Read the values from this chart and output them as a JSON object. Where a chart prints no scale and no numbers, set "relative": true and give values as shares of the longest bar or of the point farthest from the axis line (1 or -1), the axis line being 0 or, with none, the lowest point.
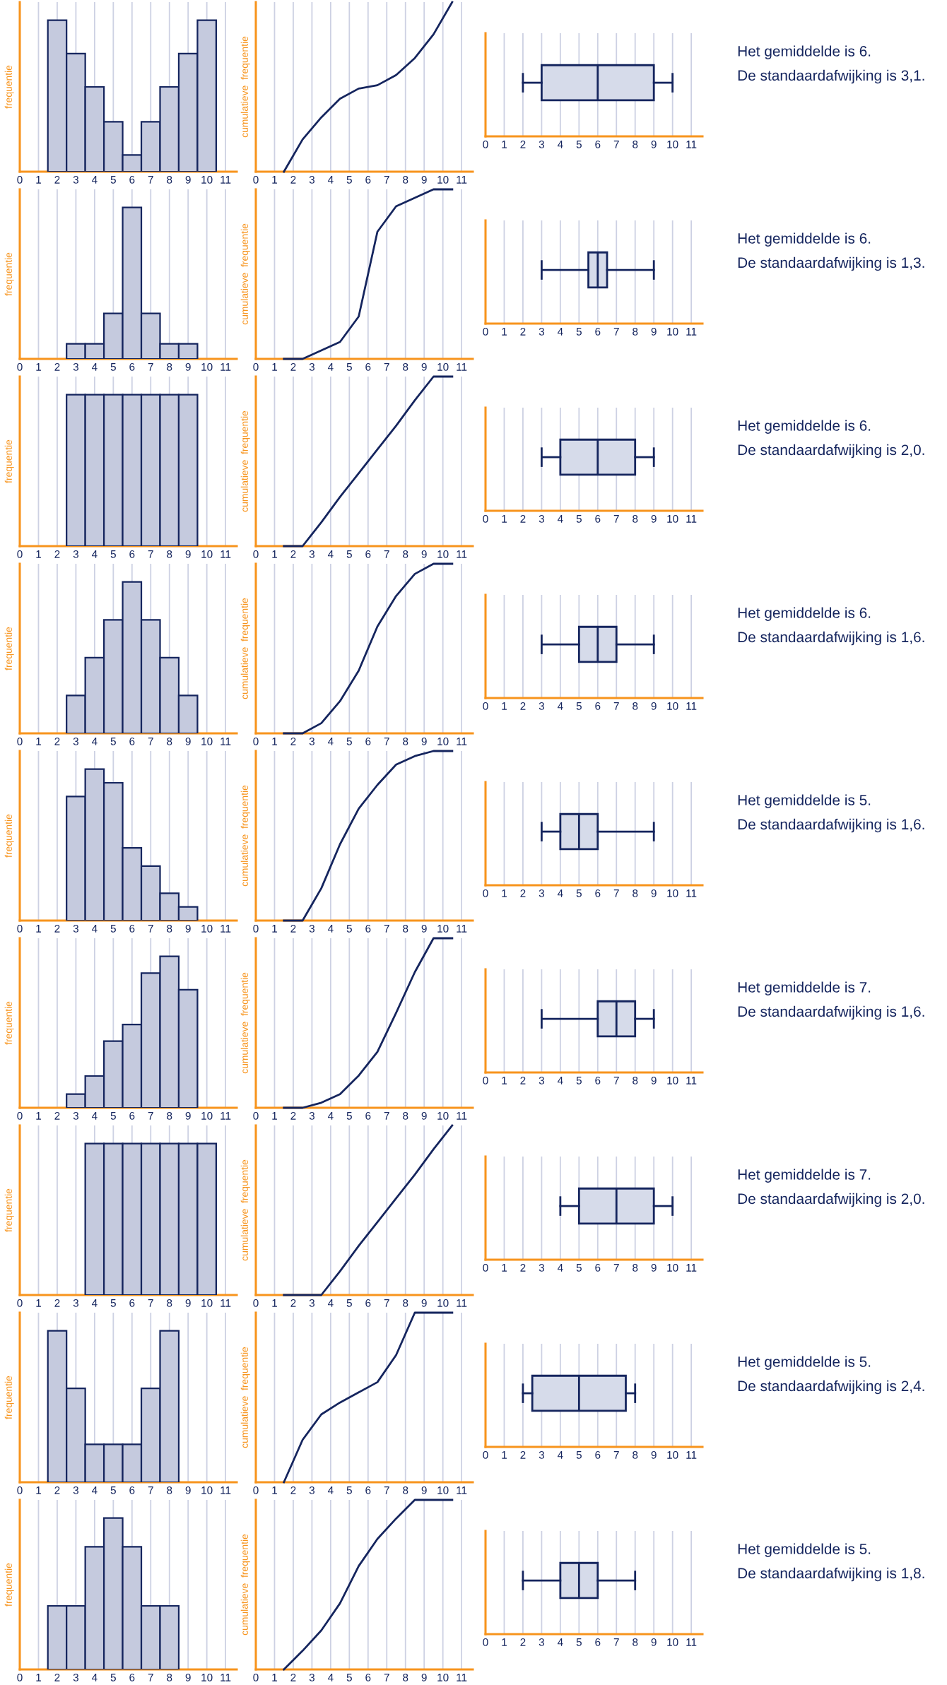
{
  "chart_data": [
    {
      "type": "bar",
      "relative": true,
      "ylabel": "frequentie",
      "x": [
        2,
        3,
        4,
        5,
        6,
        7,
        8,
        9,
        10
      ],
      "values": [
        1,
        0.78,
        0.56,
        0.33,
        0.11,
        0.33,
        0.56,
        0.78,
        1
      ],
      "color": "#c5cade",
      "xlim": [
        0,
        11.6
      ],
      "xticks": [
        0,
        1,
        2,
        3,
        4,
        5,
        6,
        7,
        8,
        9,
        10,
        11
      ],
      "grid": "x"
    },
    {
      "type": "line",
      "relative": true,
      "ylabel": "cumulatieve  frequentie",
      "x": [
        1.5,
        2.5,
        3.5,
        4.5,
        5.5,
        6.5,
        7.5,
        8.5,
        9.5,
        10.5
      ],
      "values": [
        0,
        0.19,
        0.32,
        0.43,
        0.49,
        0.51,
        0.57,
        0.67,
        0.81,
        1
      ],
      "color": "#15255e",
      "xlim": [
        0,
        11.6
      ],
      "xticks": [
        0,
        1,
        2,
        3,
        4,
        5,
        6,
        7,
        8,
        9,
        10,
        11
      ],
      "grid": "x"
    },
    {
      "type": "box",
      "orientation": "horizontal",
      "categories": [
        null
      ],
      "boxes": [
        {
          "low": 2,
          "q1": 3,
          "median": 6,
          "q3": 9,
          "high": 10
        }
      ],
      "color": "#d6dbea",
      "xlim": [
        0,
        11.6
      ],
      "xticks": [
        0,
        1,
        2,
        3,
        4,
        5,
        6,
        7,
        8,
        9,
        10,
        11
      ],
      "grid": "x",
      "annotations": [
        "Het gemiddelde is 6.",
        "De standaardafwijking is 3,1."
      ]
    },
    {
      "type": "bar",
      "relative": true,
      "ylabel": "frequentie",
      "x": [
        3,
        4,
        5,
        6,
        7,
        8,
        9
      ],
      "values": [
        0.1,
        0.1,
        0.3,
        1,
        0.3,
        0.1,
        0.1
      ],
      "color": "#c5cade",
      "xlim": [
        0,
        11.6
      ],
      "xticks": [
        0,
        1,
        2,
        3,
        4,
        5,
        6,
        7,
        8,
        9,
        10,
        11
      ],
      "grid": "x"
    },
    {
      "type": "line",
      "relative": true,
      "ylabel": "cumulatieve  frequentie",
      "x": [
        1.5,
        2.5,
        3.5,
        4.5,
        5.5,
        6.5,
        7.5,
        8.5,
        9.5,
        10.5
      ],
      "values": [
        0,
        0,
        0.05,
        0.1,
        0.25,
        0.75,
        0.9,
        0.95,
        1,
        1
      ],
      "color": "#15255e",
      "xlim": [
        0,
        11.6
      ],
      "xticks": [
        0,
        1,
        2,
        3,
        4,
        5,
        6,
        7,
        8,
        9,
        10,
        11
      ],
      "grid": "x"
    },
    {
      "type": "box",
      "orientation": "horizontal",
      "categories": [
        null
      ],
      "boxes": [
        {
          "low": 3,
          "q1": 5.5,
          "median": 6,
          "q3": 6.5,
          "high": 9
        }
      ],
      "color": "#d6dbea",
      "xlim": [
        0,
        11.6
      ],
      "xticks": [
        0,
        1,
        2,
        3,
        4,
        5,
        6,
        7,
        8,
        9,
        10,
        11
      ],
      "grid": "x",
      "annotations": [
        "Het gemiddelde is 6.",
        "De standaardafwijking is 1,3."
      ]
    },
    {
      "type": "bar",
      "relative": true,
      "ylabel": "frequentie",
      "x": [
        3,
        4,
        5,
        6,
        7,
        8,
        9
      ],
      "values": [
        1,
        1,
        1,
        1,
        1,
        1,
        1
      ],
      "color": "#c5cade",
      "xlim": [
        0,
        11.6
      ],
      "xticks": [
        0,
        1,
        2,
        3,
        4,
        5,
        6,
        7,
        8,
        9,
        10,
        11
      ],
      "grid": "x"
    },
    {
      "type": "line",
      "relative": true,
      "ylabel": "cumulatieve  frequentie",
      "x": [
        1.5,
        2.5,
        3.5,
        4.5,
        5.5,
        6.5,
        7.5,
        8.5,
        9.5,
        10.5
      ],
      "values": [
        0,
        0,
        0.14,
        0.29,
        0.43,
        0.57,
        0.71,
        0.86,
        1,
        1
      ],
      "color": "#15255e",
      "xlim": [
        0,
        11.6
      ],
      "xticks": [
        0,
        1,
        2,
        3,
        4,
        5,
        6,
        7,
        8,
        9,
        10,
        11
      ],
      "grid": "x"
    },
    {
      "type": "box",
      "orientation": "horizontal",
      "categories": [
        null
      ],
      "boxes": [
        {
          "low": 3,
          "q1": 4,
          "median": 6,
          "q3": 8,
          "high": 9
        }
      ],
      "color": "#d6dbea",
      "xlim": [
        0,
        11.6
      ],
      "xticks": [
        0,
        1,
        2,
        3,
        4,
        5,
        6,
        7,
        8,
        9,
        10,
        11
      ],
      "grid": "x",
      "annotations": [
        "Het gemiddelde is 6.",
        "De standaardafwijking is 2,0."
      ]
    },
    {
      "type": "bar",
      "relative": true,
      "ylabel": "frequentie",
      "x": [
        3,
        4,
        5,
        6,
        7,
        8,
        9
      ],
      "values": [
        0.25,
        0.5,
        0.75,
        1,
        0.75,
        0.5,
        0.25
      ],
      "color": "#c5cade",
      "xlim": [
        0,
        11.6
      ],
      "xticks": [
        0,
        1,
        2,
        3,
        4,
        5,
        6,
        7,
        8,
        9,
        10,
        11
      ],
      "grid": "x"
    },
    {
      "type": "line",
      "relative": true,
      "ylabel": "cumulatieve  frequentie",
      "x": [
        1.5,
        2.5,
        3.5,
        4.5,
        5.5,
        6.5,
        7.5,
        8.5,
        9.5,
        10.5
      ],
      "values": [
        0,
        0,
        0.06,
        0.19,
        0.37,
        0.63,
        0.81,
        0.94,
        1,
        1
      ],
      "color": "#15255e",
      "xlim": [
        0,
        11.6
      ],
      "xticks": [
        0,
        1,
        2,
        3,
        4,
        5,
        6,
        7,
        8,
        9,
        10,
        11
      ],
      "grid": "x"
    },
    {
      "type": "box",
      "orientation": "horizontal",
      "categories": [
        null
      ],
      "boxes": [
        {
          "low": 3,
          "q1": 5,
          "median": 6,
          "q3": 7,
          "high": 9
        }
      ],
      "color": "#d6dbea",
      "xlim": [
        0,
        11.6
      ],
      "xticks": [
        0,
        1,
        2,
        3,
        4,
        5,
        6,
        7,
        8,
        9,
        10,
        11
      ],
      "grid": "x",
      "annotations": [
        "Het gemiddelde is 6.",
        "De standaardafwijking is 1,6."
      ]
    },
    {
      "type": "bar",
      "relative": true,
      "ylabel": "frequentie",
      "x": [
        3,
        4,
        5,
        6,
        7,
        8,
        9
      ],
      "values": [
        0.82,
        1,
        0.91,
        0.48,
        0.36,
        0.18,
        0.09
      ],
      "color": "#c5cade",
      "xlim": [
        0,
        11.6
      ],
      "xticks": [
        0,
        1,
        2,
        3,
        4,
        5,
        6,
        7,
        8,
        9,
        10,
        11
      ],
      "grid": "x"
    },
    {
      "type": "line",
      "relative": true,
      "ylabel": "cumulatieve  frequentie",
      "x": [
        1.5,
        2.5,
        3.5,
        4.5,
        5.5,
        6.5,
        7.5,
        8.5,
        9.5,
        10.5
      ],
      "values": [
        0,
        0,
        0.19,
        0.45,
        0.66,
        0.8,
        0.92,
        0.97,
        1,
        1
      ],
      "color": "#15255e",
      "xlim": [
        0,
        11.6
      ],
      "xticks": [
        0,
        1,
        2,
        3,
        4,
        5,
        6,
        7,
        8,
        9,
        10,
        11
      ],
      "grid": "x"
    },
    {
      "type": "box",
      "orientation": "horizontal",
      "categories": [
        null
      ],
      "boxes": [
        {
          "low": 3,
          "q1": 4,
          "median": 5,
          "q3": 6,
          "high": 9
        }
      ],
      "color": "#d6dbea",
      "xlim": [
        0,
        11.6
      ],
      "xticks": [
        0,
        1,
        2,
        3,
        4,
        5,
        6,
        7,
        8,
        9,
        10,
        11
      ],
      "grid": "x",
      "annotations": [
        "Het gemiddelde is 5.",
        "De standaardafwijking is 1,6."
      ]
    },
    {
      "type": "bar",
      "relative": true,
      "ylabel": "frequentie",
      "x": [
        3,
        4,
        5,
        6,
        7,
        8,
        9
      ],
      "values": [
        0.09,
        0.21,
        0.44,
        0.55,
        0.89,
        1,
        0.78
      ],
      "color": "#c5cade",
      "xlim": [
        0,
        11.6
      ],
      "xticks": [
        0,
        1,
        2,
        3,
        4,
        5,
        6,
        7,
        8,
        9,
        10,
        11
      ],
      "grid": "x"
    },
    {
      "type": "line",
      "relative": true,
      "ylabel": "cumulatieve  frequentie",
      "x": [
        1.5,
        2.5,
        3.5,
        4.5,
        5.5,
        6.5,
        7.5,
        8.5,
        9.5,
        10.5
      ],
      "values": [
        0,
        0,
        0.03,
        0.08,
        0.19,
        0.33,
        0.56,
        0.8,
        1,
        1
      ],
      "color": "#15255e",
      "xlim": [
        0,
        11.6
      ],
      "xticks": [
        0,
        1,
        2,
        3,
        4,
        5,
        6,
        7,
        8,
        9,
        10,
        11
      ],
      "grid": "x"
    },
    {
      "type": "box",
      "orientation": "horizontal",
      "categories": [
        null
      ],
      "boxes": [
        {
          "low": 3,
          "q1": 6,
          "median": 7,
          "q3": 8,
          "high": 9
        }
      ],
      "color": "#d6dbea",
      "xlim": [
        0,
        11.6
      ],
      "xticks": [
        0,
        1,
        2,
        3,
        4,
        5,
        6,
        7,
        8,
        9,
        10,
        11
      ],
      "grid": "x",
      "annotations": [
        "Het gemiddelde is 7.",
        "De standaardafwijking is 1,6."
      ]
    },
    {
      "type": "bar",
      "relative": true,
      "ylabel": "frequentie",
      "x": [
        4,
        5,
        6,
        7,
        8,
        9,
        10
      ],
      "values": [
        1,
        1,
        1,
        1,
        1,
        1,
        1
      ],
      "color": "#c5cade",
      "xlim": [
        0,
        11.6
      ],
      "xticks": [
        0,
        1,
        2,
        3,
        4,
        5,
        6,
        7,
        8,
        9,
        10,
        11
      ],
      "grid": "x"
    },
    {
      "type": "line",
      "relative": true,
      "ylabel": "cumulatieve  frequentie",
      "x": [
        1.5,
        2.5,
        3.5,
        4.5,
        5.5,
        6.5,
        7.5,
        8.5,
        9.5,
        10.5
      ],
      "values": [
        0,
        0,
        0,
        0.14,
        0.29,
        0.43,
        0.57,
        0.71,
        0.86,
        1
      ],
      "color": "#15255e",
      "xlim": [
        0,
        11.6
      ],
      "xticks": [
        0,
        1,
        2,
        3,
        4,
        5,
        6,
        7,
        8,
        9,
        10,
        11
      ],
      "grid": "x"
    },
    {
      "type": "box",
      "orientation": "horizontal",
      "categories": [
        null
      ],
      "boxes": [
        {
          "low": 4,
          "q1": 5,
          "median": 7,
          "q3": 9,
          "high": 10
        }
      ],
      "color": "#d6dbea",
      "xlim": [
        0,
        11.6
      ],
      "xticks": [
        0,
        1,
        2,
        3,
        4,
        5,
        6,
        7,
        8,
        9,
        10,
        11
      ],
      "grid": "x",
      "annotations": [
        "Het gemiddelde is 7.",
        "De standaardafwijking is 2,0."
      ]
    },
    {
      "type": "bar",
      "relative": true,
      "ylabel": "frequentie",
      "x": [
        2,
        3,
        4,
        5,
        6,
        7,
        8
      ],
      "values": [
        1,
        0.62,
        0.25,
        0.25,
        0.25,
        0.62,
        1
      ],
      "color": "#c5cade",
      "xlim": [
        0,
        11.6
      ],
      "xticks": [
        0,
        1,
        2,
        3,
        4,
        5,
        6,
        7,
        8,
        9,
        10,
        11
      ],
      "grid": "x"
    },
    {
      "type": "line",
      "relative": true,
      "ylabel": "cumulatieve  frequentie",
      "x": [
        1.5,
        2.5,
        3.5,
        4.5,
        5.5,
        6.5,
        7.5,
        8.5,
        9.5,
        10.5
      ],
      "values": [
        0,
        0.25,
        0.4,
        0.47,
        0.53,
        0.59,
        0.75,
        1,
        1,
        1
      ],
      "color": "#15255e",
      "xlim": [
        0,
        11.6
      ],
      "xticks": [
        0,
        1,
        2,
        3,
        4,
        5,
        6,
        7,
        8,
        9,
        10,
        11
      ],
      "grid": "x"
    },
    {
      "type": "box",
      "orientation": "horizontal",
      "categories": [
        null
      ],
      "boxes": [
        {
          "low": 2,
          "q1": 2.5,
          "median": 5,
          "q3": 7.5,
          "high": 8
        }
      ],
      "color": "#d6dbea",
      "xlim": [
        0,
        11.6
      ],
      "xticks": [
        0,
        1,
        2,
        3,
        4,
        5,
        6,
        7,
        8,
        9,
        10,
        11
      ],
      "grid": "x",
      "annotations": [
        "Het gemiddelde is 5.",
        "De standaardafwijking is 2,4."
      ]
    },
    {
      "type": "bar",
      "relative": true,
      "ylabel": "frequentie",
      "x": [
        2,
        3,
        4,
        5,
        6,
        7,
        8
      ],
      "values": [
        0.42,
        0.42,
        0.81,
        1,
        0.81,
        0.42,
        0.42
      ],
      "color": "#c5cade",
      "xlim": [
        0,
        11.6
      ],
      "xticks": [
        0,
        1,
        2,
        3,
        4,
        5,
        6,
        7,
        8,
        9,
        10,
        11
      ],
      "grid": "x"
    },
    {
      "type": "line",
      "relative": true,
      "ylabel": "cumulatieve  frequentie",
      "x": [
        1.5,
        2.5,
        3.5,
        4.5,
        5.5,
        6.5,
        7.5,
        8.5,
        9.5,
        10.5
      ],
      "values": [
        0,
        0.11,
        0.23,
        0.39,
        0.61,
        0.77,
        0.89,
        1,
        1,
        1
      ],
      "color": "#15255e",
      "xlim": [
        0,
        11.6
      ],
      "xticks": [
        0,
        1,
        2,
        3,
        4,
        5,
        6,
        7,
        8,
        9,
        10,
        11
      ],
      "grid": "x"
    },
    {
      "type": "box",
      "orientation": "horizontal",
      "categories": [
        null
      ],
      "boxes": [
        {
          "low": 2,
          "q1": 4,
          "median": 5,
          "q3": 6,
          "high": 8
        }
      ],
      "color": "#d6dbea",
      "xlim": [
        0,
        11.6
      ],
      "xticks": [
        0,
        1,
        2,
        3,
        4,
        5,
        6,
        7,
        8,
        9,
        10,
        11
      ],
      "grid": "x",
      "annotations": [
        "Het gemiddelde is 5.",
        "De standaardafwijking is 1,8."
      ]
    }
  ]
}
